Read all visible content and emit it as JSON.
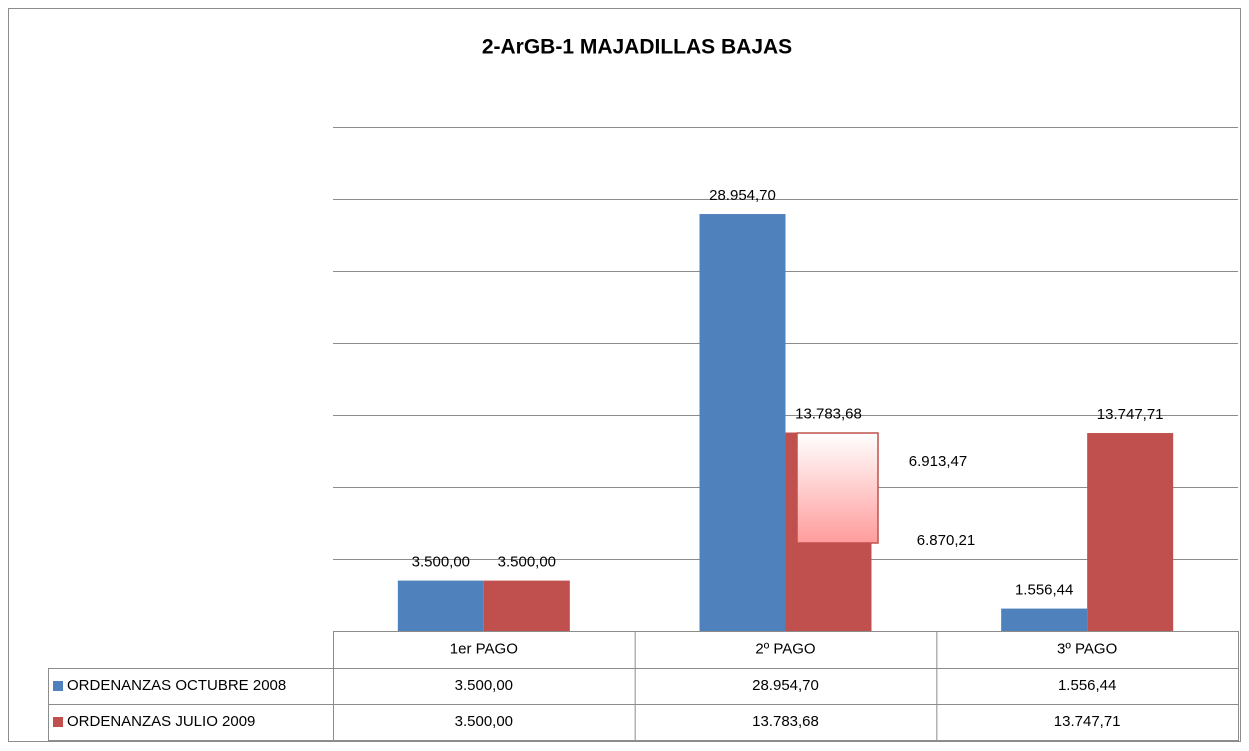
{
  "chart_data": {
    "type": "bar",
    "title": "2-ArGB-1 MAJADILLAS BAJAS",
    "categories": [
      "1er PAGO",
      "2º PAGO",
      "3º PAGO"
    ],
    "series": [
      {
        "name": "ORDENANZAS OCTUBRE 2008",
        "color": "#4f81bd",
        "values": [
          3500.0,
          28954.7,
          1556.44
        ],
        "value_labels": [
          "3.500,00",
          "28.954,70",
          "1.556,44"
        ]
      },
      {
        "name": "ORDENANZAS JULIO 2009",
        "color": "#c0504d",
        "values": [
          3500.0,
          13783.68,
          13747.71
        ],
        "value_labels": [
          "3.500,00",
          "13.783,68",
          "13.747,71"
        ]
      }
    ],
    "annotations": [
      "6.913,47",
      "6.870,21"
    ],
    "ylim": [
      0,
      35000
    ],
    "yticks": [
      0,
      5000,
      10000,
      15000,
      20000,
      25000,
      30000,
      35000
    ],
    "grid": true
  }
}
